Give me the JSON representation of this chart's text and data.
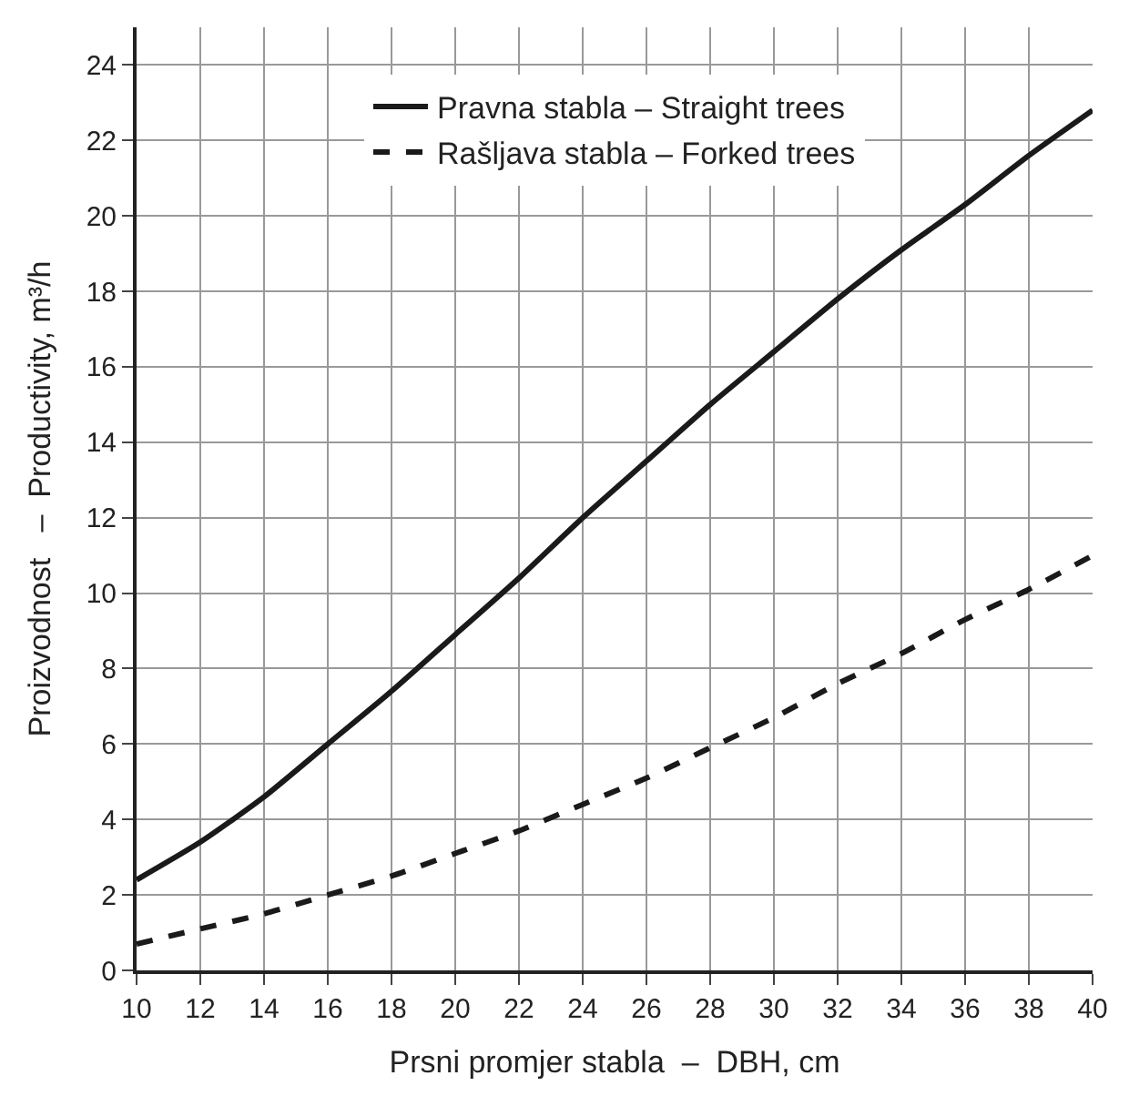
{
  "chart_data": {
    "type": "line",
    "xlabel": "Prsni promjer stabla  –  DBH, cm",
    "ylabel": "Proizvodnost   –  Productivity, m³/h",
    "x": [
      10,
      12,
      14,
      16,
      18,
      20,
      22,
      24,
      26,
      28,
      30,
      32,
      34,
      36,
      38,
      40
    ],
    "series": [
      {
        "name": "Pravna stabla – Straight trees",
        "color": "#1a1a1a",
        "line_style": "solid",
        "values": [
          2.4,
          3.4,
          4.6,
          6.0,
          7.4,
          8.9,
          10.4,
          12.0,
          13.5,
          15.0,
          16.4,
          17.8,
          19.1,
          20.3,
          21.6,
          22.8
        ]
      },
      {
        "name": "Rašljava stabla – Forked trees",
        "color": "#1a1a1a",
        "line_style": "dashed",
        "values": [
          0.7,
          1.1,
          1.5,
          2.0,
          2.5,
          3.1,
          3.7,
          4.4,
          5.1,
          5.9,
          6.7,
          7.6,
          8.4,
          9.3,
          10.1,
          11.0
        ]
      }
    ],
    "xlim": [
      10,
      40
    ],
    "xticks": [
      10,
      12,
      14,
      16,
      18,
      20,
      22,
      24,
      26,
      28,
      30,
      32,
      34,
      36,
      38,
      40
    ],
    "ylim": [
      0,
      25
    ],
    "yticks": [
      0,
      2,
      4,
      6,
      8,
      10,
      12,
      14,
      16,
      18,
      20,
      22,
      24
    ],
    "grid": true,
    "legend": "top",
    "marker": "none"
  }
}
